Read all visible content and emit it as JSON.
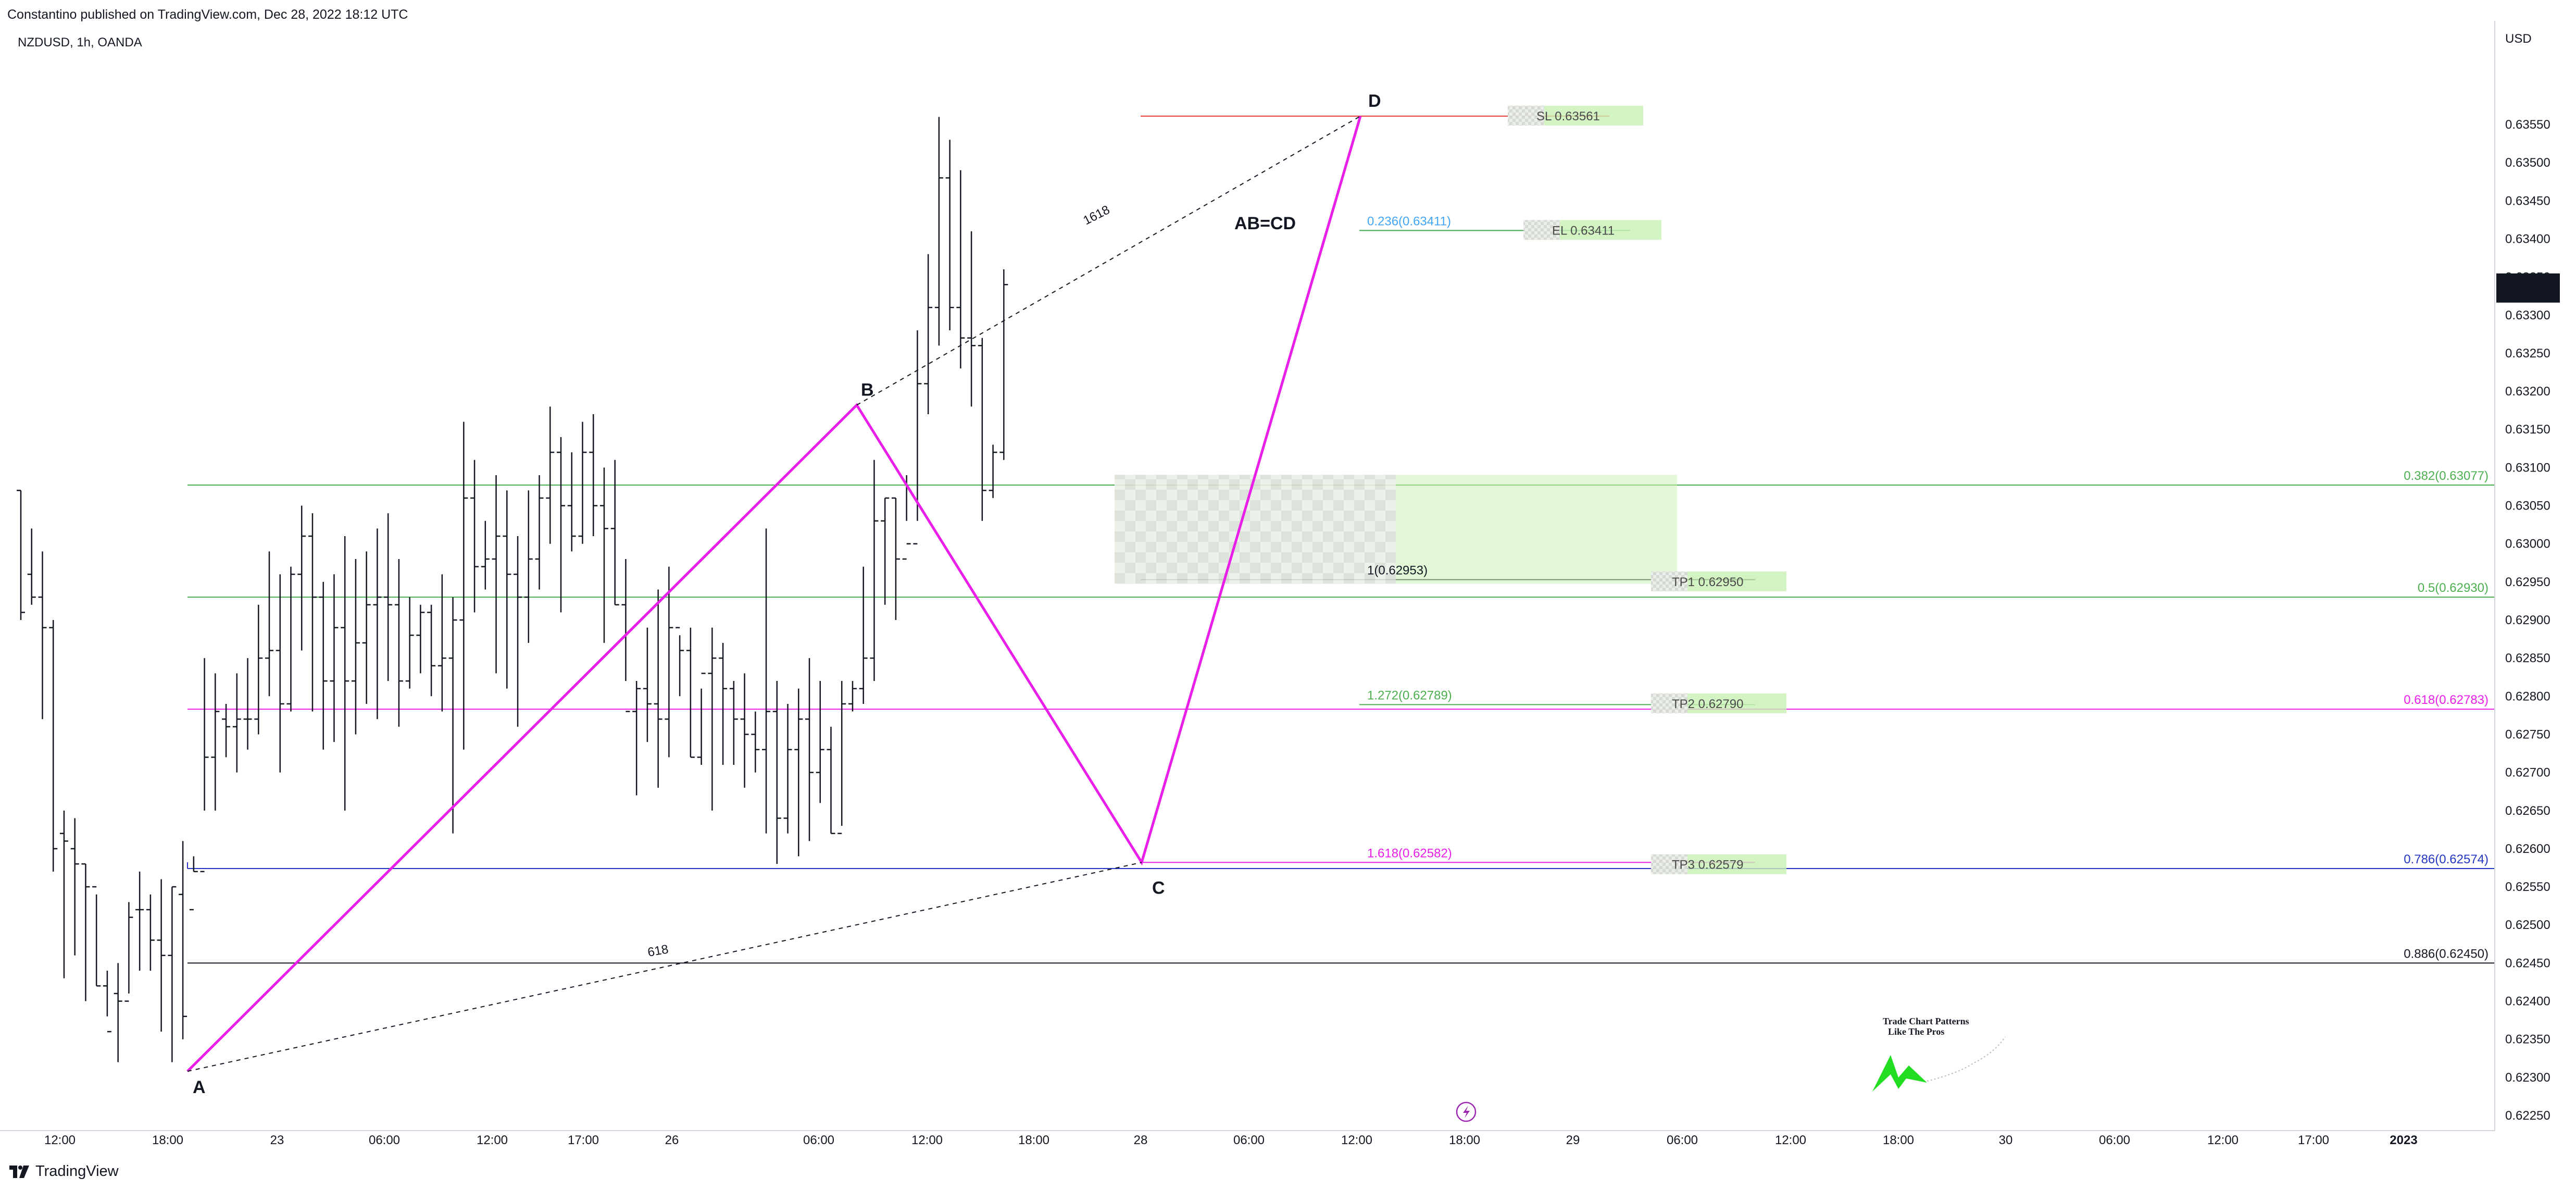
{
  "header": {
    "publish_line": "Constantino published on TradingView.com, Dec 28, 2022 18:12 UTC"
  },
  "symbol_line": "NZDUSD, 1h, OANDA",
  "footer": {
    "brand": "TradingView"
  },
  "colors": {
    "pattern": "#e91ee9",
    "fib_green": "#4caf50",
    "fib_blue": "#2536c4",
    "fib_black": "#131722",
    "fib_magenta": "#e91ee9",
    "stop": "#e53935",
    "entry": "#42a5f5",
    "zone_green": "#c8f0b4"
  },
  "chart_data": {
    "type": "ohlc",
    "currency": "USD",
    "interval": "1h",
    "ylim": [
      0.6222,
      0.6358
    ],
    "y_ticks": [
      0.6225,
      0.623,
      0.6235,
      0.624,
      0.6245,
      0.625,
      0.6255,
      0.626,
      0.6265,
      0.627,
      0.6275,
      0.628,
      0.6285,
      0.629,
      0.6295,
      0.63,
      0.6305,
      0.631,
      0.6315,
      0.632,
      0.6325,
      0.633,
      0.6335,
      0.634,
      0.6345,
      0.635,
      0.6355
    ],
    "x_ticks": [
      "12:00",
      "18:00",
      "23",
      "06:00",
      "12:00",
      "17:00",
      "26",
      "06:00",
      "12:00",
      "18:00",
      "28",
      "06:00",
      "12:00",
      "18:00",
      "29",
      "06:00",
      "12:00",
      "18:00",
      "30",
      "06:00",
      "12:00",
      "17:00",
      "2023"
    ],
    "last_price": {
      "value": "0.63341",
      "countdown": "47:33"
    },
    "bars": [
      [
        0.6307,
        0.6307,
        0.629,
        0.6291
      ],
      [
        0.6296,
        0.6302,
        0.6292,
        0.6293
      ],
      [
        0.6293,
        0.6299,
        0.6277,
        0.6289
      ],
      [
        0.6289,
        0.629,
        0.6257,
        0.626
      ],
      [
        0.6262,
        0.6265,
        0.6243,
        0.6261
      ],
      [
        0.626,
        0.6264,
        0.6246,
        0.6258
      ],
      [
        0.6258,
        0.6258,
        0.624,
        0.6255
      ],
      [
        0.6255,
        0.6254,
        0.6242,
        0.6242
      ],
      [
        0.6242,
        0.6244,
        0.6238,
        0.6236
      ],
      [
        0.6241,
        0.6245,
        0.6232,
        0.624
      ],
      [
        0.624,
        0.6253,
        0.6241,
        0.6251
      ],
      [
        0.6252,
        0.6257,
        0.6244,
        0.6252
      ],
      [
        0.6252,
        0.6254,
        0.6244,
        0.6248
      ],
      [
        0.6248,
        0.6256,
        0.6236,
        0.6246
      ],
      [
        0.6246,
        0.6255,
        0.6232,
        0.6255
      ],
      [
        0.6254,
        0.6261,
        0.6235,
        0.6238
      ],
      [
        0.6252,
        0.6259,
        0.6257,
        0.6257
      ],
      [
        0.6257,
        0.6285,
        0.6265,
        0.6272
      ],
      [
        0.6272,
        0.6283,
        0.6265,
        0.6278
      ],
      [
        0.6277,
        0.6279,
        0.6272,
        0.6276
      ],
      [
        0.6276,
        0.6283,
        0.627,
        0.6277
      ],
      [
        0.6277,
        0.6285,
        0.6273,
        0.6277
      ],
      [
        0.6277,
        0.6292,
        0.6275,
        0.6285
      ],
      [
        0.6285,
        0.6299,
        0.628,
        0.6286
      ],
      [
        0.6286,
        0.6296,
        0.627,
        0.6279
      ],
      [
        0.6279,
        0.6297,
        0.6278,
        0.6296
      ],
      [
        0.6296,
        0.6305,
        0.6286,
        0.6301
      ],
      [
        0.6301,
        0.6304,
        0.6278,
        0.6293
      ],
      [
        0.6293,
        0.6295,
        0.6273,
        0.6282
      ],
      [
        0.6282,
        0.6296,
        0.6274,
        0.6289
      ],
      [
        0.6289,
        0.6301,
        0.6265,
        0.6282
      ],
      [
        0.6282,
        0.6298,
        0.6275,
        0.6287
      ],
      [
        0.6287,
        0.6299,
        0.6279,
        0.6292
      ],
      [
        0.6292,
        0.6302,
        0.6277,
        0.6293
      ],
      [
        0.6293,
        0.6304,
        0.6282,
        0.6292
      ],
      [
        0.6292,
        0.6298,
        0.6276,
        0.6282
      ],
      [
        0.6282,
        0.6293,
        0.6281,
        0.6288
      ],
      [
        0.6288,
        0.6292,
        0.6283,
        0.6291
      ],
      [
        0.6291,
        0.6292,
        0.628,
        0.6284
      ],
      [
        0.6284,
        0.6296,
        0.6278,
        0.6285
      ],
      [
        0.6285,
        0.6293,
        0.6262,
        0.629
      ],
      [
        0.629,
        0.6316,
        0.6273,
        0.6306
      ],
      [
        0.6306,
        0.6311,
        0.6291,
        0.6297
      ],
      [
        0.6297,
        0.6303,
        0.6294,
        0.6298
      ],
      [
        0.6298,
        0.6309,
        0.6283,
        0.6301
      ],
      [
        0.6301,
        0.6307,
        0.6281,
        0.6296
      ],
      [
        0.6296,
        0.6301,
        0.6276,
        0.6293
      ],
      [
        0.6293,
        0.6307,
        0.6287,
        0.6298
      ],
      [
        0.6298,
        0.6309,
        0.6294,
        0.6306
      ],
      [
        0.6306,
        0.6318,
        0.63,
        0.6312
      ],
      [
        0.6312,
        0.6314,
        0.6291,
        0.6305
      ],
      [
        0.6305,
        0.6312,
        0.6299,
        0.6301
      ],
      [
        0.6301,
        0.6316,
        0.63,
        0.6312
      ],
      [
        0.6312,
        0.6317,
        0.6301,
        0.6305
      ],
      [
        0.6305,
        0.631,
        0.6287,
        0.6302
      ],
      [
        0.6302,
        0.6311,
        0.6292,
        0.6292
      ],
      [
        0.6292,
        0.6298,
        0.6282,
        0.6278
      ],
      [
        0.6278,
        0.6282,
        0.6267,
        0.6281
      ],
      [
        0.6281,
        0.6289,
        0.6274,
        0.6279
      ],
      [
        0.6279,
        0.6294,
        0.6268,
        0.6277
      ],
      [
        0.6277,
        0.6297,
        0.6272,
        0.6289
      ],
      [
        0.6289,
        0.6288,
        0.628,
        0.6286
      ],
      [
        0.6286,
        0.6289,
        0.6272,
        0.6272
      ],
      [
        0.6272,
        0.6281,
        0.6271,
        0.6283
      ],
      [
        0.6283,
        0.6289,
        0.6265,
        0.6285
      ],
      [
        0.6285,
        0.6287,
        0.6271,
        0.6281
      ],
      [
        0.6281,
        0.6282,
        0.6271,
        0.6277
      ],
      [
        0.6277,
        0.6283,
        0.6268,
        0.6275
      ],
      [
        0.6275,
        0.6278,
        0.627,
        0.6273
      ],
      [
        0.6273,
        0.6302,
        0.6262,
        0.6278
      ],
      [
        0.6278,
        0.6282,
        0.6258,
        0.6264
      ],
      [
        0.6264,
        0.6279,
        0.6262,
        0.6273
      ],
      [
        0.6273,
        0.6281,
        0.6259,
        0.6277
      ],
      [
        0.6277,
        0.6285,
        0.6261,
        0.627
      ],
      [
        0.627,
        0.6282,
        0.6266,
        0.6273
      ],
      [
        0.6273,
        0.6276,
        0.6262,
        0.6262
      ],
      [
        0.6262,
        0.6282,
        0.6263,
        0.6279
      ],
      [
        0.6279,
        0.6282,
        0.6278,
        0.6281
      ],
      [
        0.6281,
        0.6297,
        0.6279,
        0.6285
      ],
      [
        0.6285,
        0.6311,
        0.6282,
        0.6303
      ],
      [
        0.6303,
        0.6306,
        0.6292,
        0.6306
      ],
      [
        0.6306,
        0.6306,
        0.629,
        0.6298
      ],
      [
        0.6298,
        0.6309,
        0.6303,
        0.63
      ],
      [
        0.63,
        0.6328,
        0.6303,
        0.6321
      ],
      [
        0.6321,
        0.6338,
        0.6317,
        0.6331
      ],
      [
        0.6331,
        0.6356,
        0.6326,
        0.6348
      ],
      [
        0.6348,
        0.6353,
        0.6328,
        0.6331
      ],
      [
        0.6331,
        0.6349,
        0.6323,
        0.6327
      ],
      [
        0.6327,
        0.6341,
        0.6318,
        0.6326
      ],
      [
        0.6326,
        0.6327,
        0.6303,
        0.6307
      ],
      [
        0.6307,
        0.6313,
        0.6306,
        0.6312
      ],
      [
        0.6312,
        0.6336,
        0.6311,
        0.6334
      ]
    ],
    "pattern": {
      "title": "AB=CD",
      "points": [
        {
          "label": "A",
          "price": 0.62308
        },
        {
          "label": "B",
          "price": 0.63182
        },
        {
          "label": "C",
          "price": 0.62582
        },
        {
          "label": "D",
          "price": 0.63561
        }
      ],
      "ratio_labels": [
        "1618",
        "618"
      ]
    },
    "fib_levels": [
      {
        "label": "0.382(0.63077)",
        "price": 0.63077,
        "color": "#4caf50"
      },
      {
        "label": "0.5(0.62930)",
        "price": 0.6293,
        "color": "#4caf50"
      },
      {
        "label": "0.618(0.62783)",
        "price": 0.62783,
        "color": "#e91ee9"
      },
      {
        "label": "0.786(0.62574)",
        "price": 0.62574,
        "color": "#2536c4"
      },
      {
        "label": "0.886(0.62450)",
        "price": 0.6245,
        "color": "#131722"
      }
    ],
    "projection_levels": [
      {
        "label": "0.236(0.63411)",
        "price": 0.63411,
        "color": "#42a5f5"
      },
      {
        "label": "1(0.62953)",
        "price": 0.62953,
        "color": "#131722"
      },
      {
        "label": "1.272(0.62789)",
        "price": 0.62789,
        "color": "#4caf50"
      },
      {
        "label": "1.618(0.62582)",
        "price": 0.62582,
        "color": "#e91ee9"
      }
    ],
    "trade_levels": [
      {
        "label": "SL 0.63561",
        "price": 0.63561,
        "color": "#e53935"
      },
      {
        "label": "EL 0.63411",
        "price": 0.63411,
        "color": "#4caf50"
      },
      {
        "label": "TP1 0.62950",
        "price": 0.6295,
        "color": "#2536c4"
      },
      {
        "label": "TP2 0.62790",
        "price": 0.6279,
        "color": "#2536c4"
      },
      {
        "label": "TP3 0.62579",
        "price": 0.62579,
        "color": "#2536c4"
      }
    ],
    "zone": {
      "top": 0.6307,
      "bottom": 0.62968
    },
    "watermark": {
      "line1": "Trade Chart Patterns",
      "line2": "Like The Pros"
    }
  }
}
